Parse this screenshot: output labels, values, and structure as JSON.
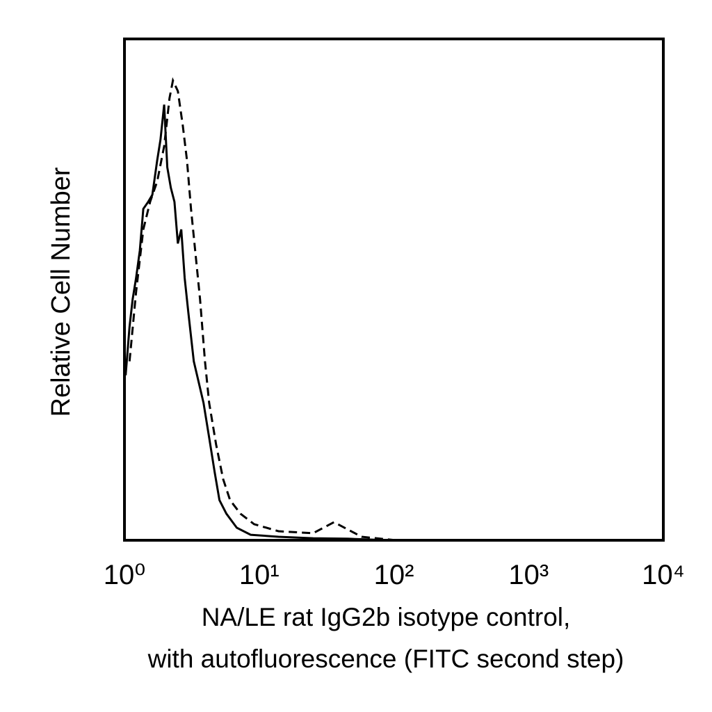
{
  "chart_data": {
    "type": "line",
    "ylabel": "Relative Cell Number",
    "xlabel": [
      "NA/LE rat IgG2b isotype control,",
      "with autofluorescence (FITC second step)"
    ],
    "xscale": "log",
    "xlim": [
      1,
      10000
    ],
    "xticks": [
      {
        "value": 1,
        "label": "10⁰"
      },
      {
        "value": 10,
        "label": "10¹"
      },
      {
        "value": 100,
        "label": "10²"
      },
      {
        "value": 1000,
        "label": "10³"
      },
      {
        "value": 10000,
        "label": "10⁴"
      }
    ],
    "ylim": [
      0,
      100
    ],
    "series": [
      {
        "color": "#000000",
        "dash": false,
        "x": [
          1.02,
          1.09,
          1.15,
          1.22,
          1.3,
          1.38,
          1.5,
          1.61,
          1.75,
          1.85,
          1.97,
          2.08,
          2.21,
          2.35,
          2.49,
          2.64,
          2.8,
          2.98,
          3.27,
          3.56,
          3.86,
          4.25,
          4.67,
          5.07,
          5.71,
          6.82,
          8.65,
          13.9,
          25.1,
          45.5,
          92.6
        ],
        "values": [
          32.9,
          42.6,
          48.1,
          52.3,
          57.8,
          66.1,
          67.5,
          68.9,
          75.8,
          79.9,
          86.9,
          74.4,
          70.3,
          67.5,
          59.2,
          62.0,
          52.3,
          45.4,
          35.7,
          31.5,
          27.4,
          20.5,
          13.6,
          8.0,
          5.3,
          2.5,
          1.1,
          0.7,
          0.4,
          0.3,
          0
        ]
      },
      {
        "color": "#000000",
        "dash": true,
        "x": [
          1.09,
          1.22,
          1.38,
          1.55,
          1.75,
          1.97,
          2.16,
          2.29,
          2.49,
          2.71,
          2.91,
          3.12,
          3.35,
          3.64,
          3.96,
          4.25,
          4.79,
          5.4,
          6.08,
          7.26,
          9.17,
          13.9,
          25.1,
          35.9,
          57.6,
          104
        ],
        "values": [
          35.7,
          49.5,
          62.0,
          67.5,
          71.6,
          78.6,
          88.2,
          91.7,
          89.6,
          82.7,
          75.8,
          66.1,
          57.8,
          48.1,
          35.7,
          27.4,
          19.1,
          12.2,
          8.0,
          5.3,
          3.2,
          1.8,
          1.4,
          3.6,
          0.7,
          0
        ]
      }
    ]
  }
}
